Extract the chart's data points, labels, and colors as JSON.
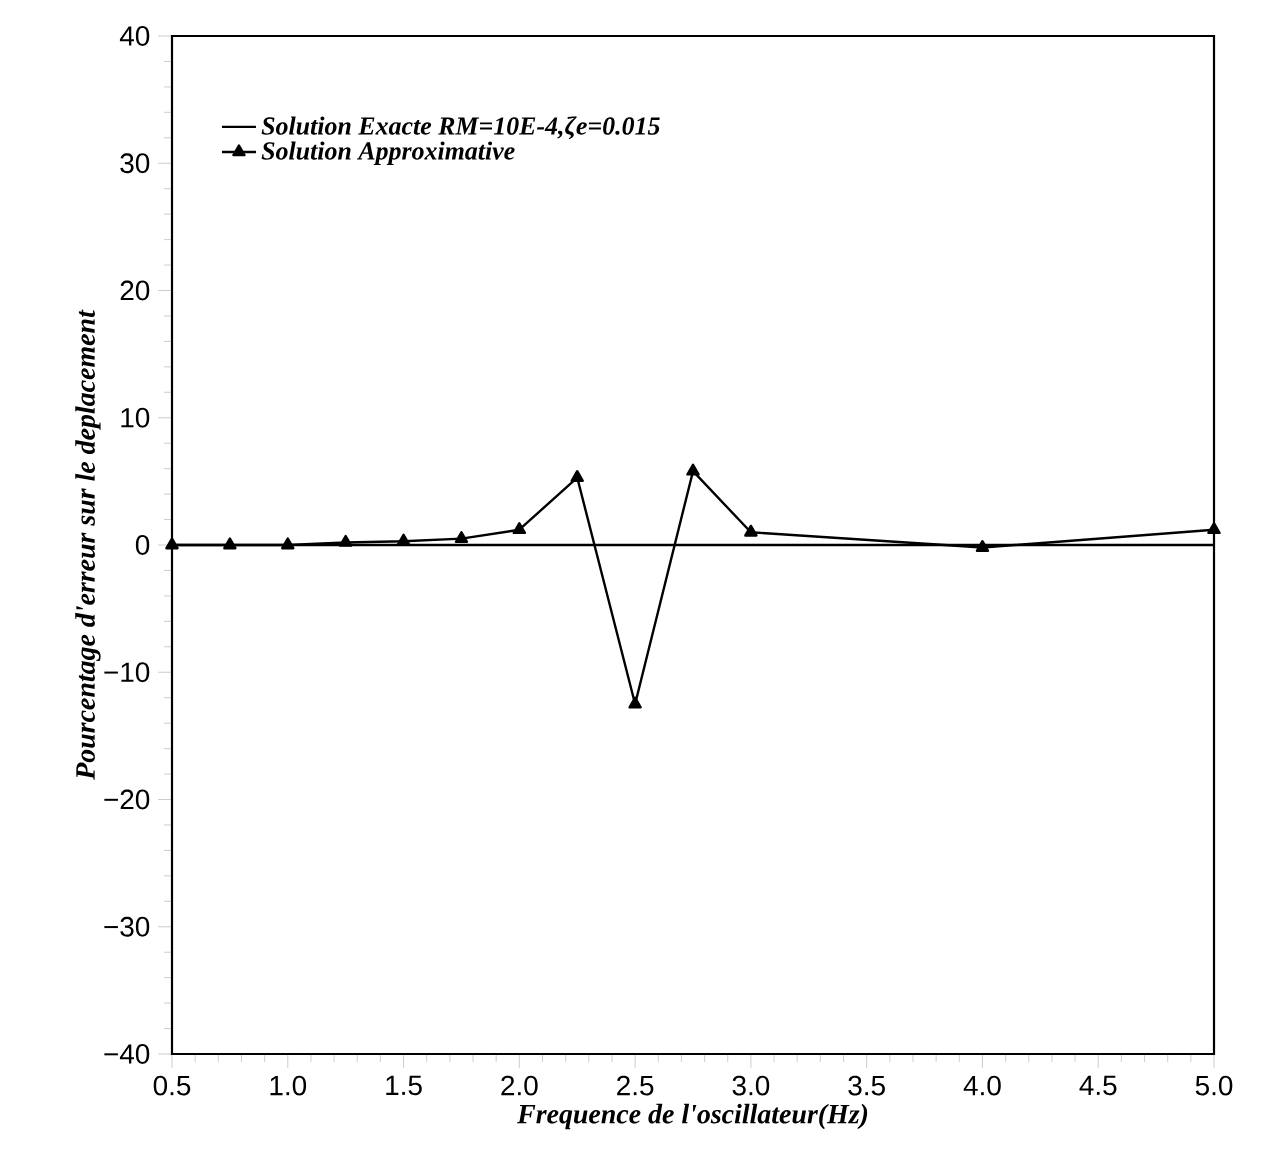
{
  "chart_data": {
    "type": "line",
    "xlabel": "Frequence de l'oscillateur(Hz)",
    "ylabel": "Pourcentage d'erreur sur le deplacement",
    "xlim": [
      0.5,
      5.0
    ],
    "xticks": [
      {
        "value": 0.5,
        "label": "0.5"
      },
      {
        "value": 1.0,
        "label": "1.0"
      },
      {
        "value": 1.5,
        "label": "1.5"
      },
      {
        "value": 2.0,
        "label": "2.0"
      },
      {
        "value": 2.5,
        "label": "2.5"
      },
      {
        "value": 3.0,
        "label": "3.0"
      },
      {
        "value": 3.5,
        "label": "3.5"
      },
      {
        "value": 4.0,
        "label": "4.0"
      },
      {
        "value": 4.5,
        "label": "4.5"
      },
      {
        "value": 5.0,
        "label": "5.0"
      }
    ],
    "ylim": [
      -40,
      40
    ],
    "yticks": [
      {
        "value": -40,
        "label": "−40"
      },
      {
        "value": -30,
        "label": "−30"
      },
      {
        "value": -20,
        "label": "−20"
      },
      {
        "value": -10,
        "label": "−10"
      },
      0,
      10,
      20,
      30,
      40
    ],
    "legend": "top left",
    "grid": false,
    "line_style": "solid",
    "series": [
      {
        "name": "Solution Exacte RM=10E-4,ζe=0.015",
        "color": "#000000",
        "x": [
          0.5,
          5.0
        ],
        "values": [
          0,
          0
        ]
      },
      {
        "name": "Solution Approximative",
        "color": "#000000",
        "marker": "triangle",
        "x": [
          0.5,
          0.75,
          1.0,
          1.25,
          1.5,
          1.75,
          2.0,
          2.25,
          2.5,
          2.75,
          3.0,
          4.0,
          5.0
        ],
        "values": [
          0,
          0,
          0,
          0.2,
          0.3,
          0.5,
          1.2,
          5.3,
          -12.5,
          5.8,
          1.0,
          -0.2,
          1.2
        ]
      }
    ]
  }
}
